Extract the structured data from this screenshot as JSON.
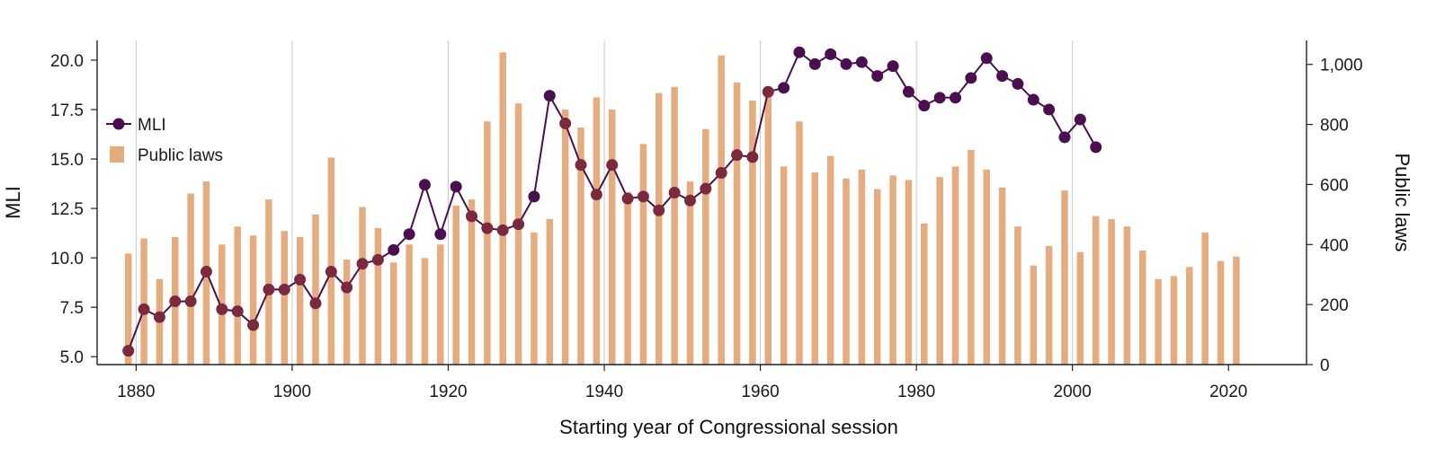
{
  "chart_data": {
    "type": "bar+line",
    "xlabel": "Starting year of Congressional session",
    "ylabel_left": "MLI",
    "ylabel_right": "Public laws",
    "xlim": [
      1875,
      2030
    ],
    "ylim_left": [
      4.6,
      21.0
    ],
    "ylim_right": [
      0,
      1080
    ],
    "x_ticks": [
      1880,
      1900,
      1920,
      1940,
      1960,
      1980,
      2000,
      2020
    ],
    "x_tick_labels": [
      "1880",
      "1900",
      "1920",
      "1940",
      "1960",
      "1980",
      "2000",
      "2020"
    ],
    "y_left_ticks": [
      5.0,
      7.5,
      10.0,
      12.5,
      15.0,
      17.5,
      20.0
    ],
    "y_left_tick_labels": [
      "5.0",
      "7.5",
      "10.0",
      "12.5",
      "15.0",
      "17.5",
      "20.0"
    ],
    "y_right_ticks": [
      0,
      200,
      400,
      600,
      800,
      1000
    ],
    "y_right_tick_labels": [
      "0",
      "200",
      "400",
      "600",
      "800",
      "1,000"
    ],
    "vertical_gridlines_at": [
      1880,
      1900,
      1920,
      1940,
      1960,
      1980,
      2000
    ],
    "legend": {
      "position": "upper-left",
      "entries": [
        {
          "label": "MLI",
          "marker": "line-dot",
          "color": "#4a0f4f"
        },
        {
          "label": "Public laws",
          "marker": "square",
          "color": "#e5ac80"
        }
      ]
    },
    "colors": {
      "bar": "#e5ac80",
      "line": "#4a0f4f",
      "marker_back": "#4a0f4f",
      "marker_front": "#7a2a3c",
      "grid": "#c8c8c8",
      "axis": "#222222"
    },
    "series": [
      {
        "name": "Public laws",
        "axis": "right",
        "kind": "bar",
        "x": [
          1879,
          1881,
          1883,
          1885,
          1887,
          1889,
          1891,
          1893,
          1895,
          1897,
          1899,
          1901,
          1903,
          1905,
          1907,
          1909,
          1911,
          1913,
          1915,
          1917,
          1919,
          1921,
          1923,
          1925,
          1927,
          1929,
          1931,
          1933,
          1935,
          1937,
          1939,
          1941,
          1943,
          1945,
          1947,
          1949,
          1951,
          1953,
          1955,
          1957,
          1959,
          1961,
          1963,
          1965,
          1967,
          1969,
          1971,
          1973,
          1975,
          1977,
          1979,
          1981,
          1983,
          1985,
          1987,
          1989,
          1991,
          1993,
          1995,
          1997,
          1999,
          2001,
          2003,
          2005,
          2007,
          2009,
          2011,
          2013,
          2015,
          2017,
          2019,
          2021
        ],
        "values": [
          370,
          420,
          285,
          425,
          570,
          610,
          400,
          460,
          430,
          550,
          445,
          425,
          500,
          690,
          350,
          525,
          455,
          340,
          400,
          355,
          400,
          530,
          550,
          810,
          1040,
          870,
          440,
          485,
          850,
          790,
          890,
          850,
          575,
          735,
          905,
          925,
          610,
          785,
          1030,
          940,
          880,
          905,
          660,
          810,
          640,
          695,
          620,
          650,
          585,
          630,
          615,
          470,
          625,
          660,
          715,
          650,
          590,
          460,
          330,
          395,
          580,
          375,
          495,
          485,
          460,
          380,
          285,
          295,
          325,
          440,
          345,
          360
        ]
      },
      {
        "name": "MLI",
        "axis": "left",
        "kind": "line",
        "x": [
          1879,
          1881,
          1883,
          1885,
          1887,
          1889,
          1891,
          1893,
          1895,
          1897,
          1899,
          1901,
          1903,
          1905,
          1907,
          1909,
          1911,
          1913,
          1915,
          1917,
          1919,
          1921,
          1923,
          1925,
          1927,
          1929,
          1931,
          1933,
          1935,
          1937,
          1939,
          1941,
          1943,
          1945,
          1947,
          1949,
          1951,
          1953,
          1955,
          1957,
          1959,
          1961,
          1963,
          1965,
          1967,
          1969,
          1971,
          1973,
          1975,
          1977,
          1979,
          1981,
          1983,
          1985,
          1987,
          1989,
          1991,
          1993,
          1995,
          1997,
          1999,
          2001,
          2003
        ],
        "values": [
          5.3,
          7.4,
          7.0,
          7.8,
          7.8,
          9.3,
          7.4,
          7.3,
          6.6,
          8.4,
          8.4,
          8.9,
          7.7,
          9.3,
          8.5,
          9.7,
          9.9,
          10.4,
          11.2,
          13.7,
          11.2,
          13.6,
          12.1,
          11.5,
          11.4,
          11.7,
          13.1,
          18.2,
          16.8,
          14.7,
          13.2,
          14.7,
          13.0,
          13.1,
          12.4,
          13.3,
          12.9,
          13.5,
          14.3,
          15.2,
          15.1,
          18.4,
          18.6,
          20.4,
          19.8,
          20.3,
          19.8,
          19.9,
          19.2,
          19.7,
          18.4,
          17.7,
          18.1,
          18.1,
          19.1,
          20.1,
          19.2,
          18.8,
          18.0,
          17.5,
          16.1,
          17.0,
          15.6
        ]
      }
    ]
  }
}
